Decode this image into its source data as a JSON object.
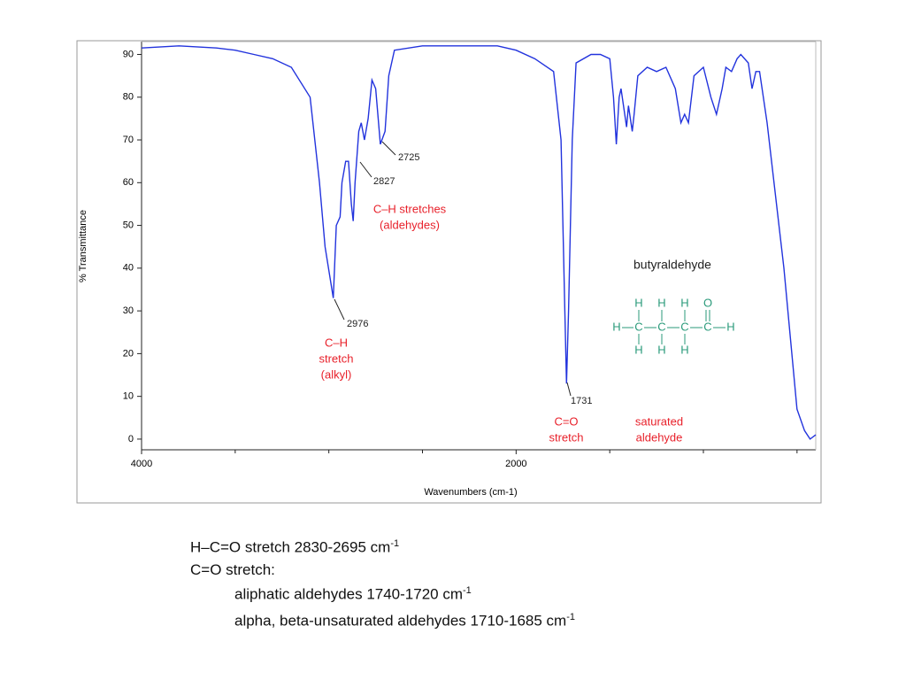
{
  "chart_data": {
    "type": "line",
    "xlabel": "Wavenumbers (cm-1)",
    "ylabel": "% Transmittance",
    "x": [
      4000,
      3800,
      3600,
      3500,
      3400,
      3300,
      3200,
      3100,
      3050,
      3020,
      2976,
      2960,
      2940,
      2930,
      2910,
      2895,
      2880,
      2870,
      2860,
      2840,
      2827,
      2810,
      2790,
      2770,
      2750,
      2725,
      2700,
      2680,
      2650,
      2500,
      2300,
      2100,
      2000,
      1900,
      1800,
      1760,
      1740,
      1731,
      1720,
      1700,
      1680,
      1600,
      1550,
      1500,
      1480,
      1465,
      1450,
      1440,
      1420,
      1410,
      1400,
      1380,
      1370,
      1350,
      1300,
      1250,
      1200,
      1150,
      1120,
      1100,
      1080,
      1050,
      1000,
      960,
      930,
      900,
      880,
      850,
      820,
      800,
      760,
      740,
      720,
      700,
      660,
      570,
      500,
      460,
      430,
      400
    ],
    "values": [
      91.5,
      92,
      91.5,
      91,
      90,
      89,
      87,
      80,
      60,
      45,
      33,
      50,
      52,
      60,
      65,
      65,
      55,
      51,
      60,
      72,
      74,
      70,
      75,
      84,
      82,
      69,
      72,
      85,
      91,
      92,
      92,
      92,
      91,
      89,
      86,
      70,
      30,
      13,
      30,
      70,
      88,
      90,
      90,
      89,
      80,
      69,
      80,
      82,
      76,
      73,
      78,
      72,
      76,
      85,
      87,
      86,
      87,
      82,
      74,
      76,
      74,
      85,
      87,
      80,
      76,
      82,
      87,
      86,
      89,
      90,
      88,
      82,
      86,
      86,
      74,
      40,
      7,
      2,
      0,
      1
    ],
    "color": "#2233dd",
    "xlim": [
      4000,
      400
    ],
    "ylim": [
      -2.5,
      93
    ],
    "xticks": [
      4000,
      2000
    ],
    "xminor": [
      3500,
      3000,
      2500,
      1500,
      1000,
      500
    ],
    "yticks": [
      0,
      10,
      20,
      30,
      40,
      50,
      60,
      70,
      80,
      90
    ],
    "annotations": [
      {
        "lines": [
          "2725"
        ],
        "color": "#222222"
      },
      {
        "lines": [
          "2827"
        ],
        "color": "#222222"
      },
      {
        "lines": [
          "2976"
        ],
        "color": "#222222"
      },
      {
        "lines": [
          "1731"
        ],
        "color": "#222222"
      },
      {
        "lines": [
          "C–H stretches",
          "(aldehydes)"
        ],
        "color": "#e8202a"
      },
      {
        "lines": [
          "C–H",
          "stretch",
          "(alkyl)"
        ],
        "color": "#e8202a"
      },
      {
        "lines": [
          "C=O",
          "stretch"
        ],
        "color": "#e8202a"
      },
      {
        "lines": [
          "saturated",
          "aldehyde"
        ],
        "color": "#e8202a"
      },
      {
        "lines": [
          "butyraldehyde"
        ],
        "color": "#222222"
      }
    ],
    "molecule": {
      "top": [
        "H",
        "H",
        "H",
        "O"
      ],
      "middle": [
        "H",
        "C",
        "C",
        "C",
        "C",
        "H"
      ],
      "bottom": [
        "H",
        "H",
        "H"
      ]
    }
  },
  "notes": [
    {
      "text": "H–C=O stretch 2830-2695 cm",
      "sup": "-1"
    },
    {
      "text": "C=O stretch:"
    },
    {
      "text": "aliphatic aldehydes 1740-1720 cm",
      "sup": "-1"
    },
    {
      "text": "alpha, beta-unsaturated aldehydes 1710-1685 cm",
      "sup": "-1"
    }
  ]
}
